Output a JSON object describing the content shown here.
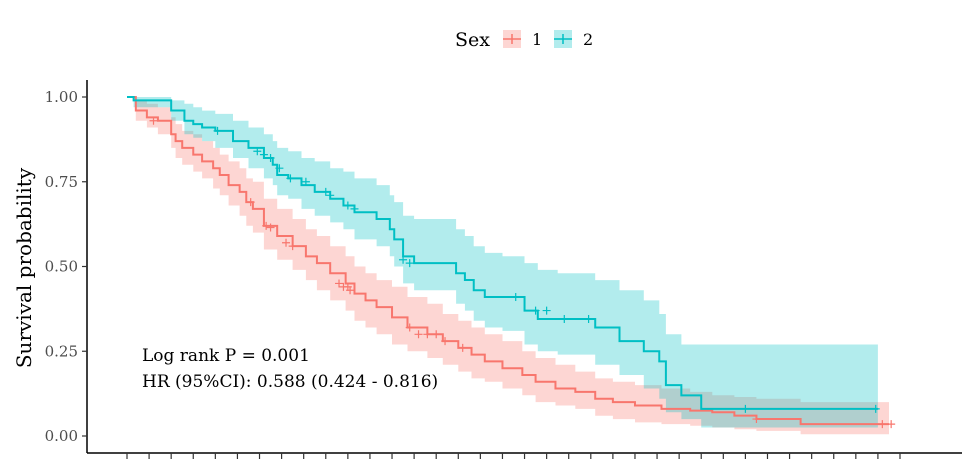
{
  "chart_data": {
    "type": "line",
    "subtype": "kaplan-meier",
    "title": "",
    "xlabel": "",
    "ylabel": "Survival probability",
    "ylim": [
      0,
      1
    ],
    "xlim": [
      0,
      35
    ],
    "y_ticks": [
      0.0,
      0.25,
      0.5,
      0.75,
      1.0
    ],
    "y_tick_labels": [
      "0.00",
      "0.25",
      "0.50",
      "0.75",
      "1.00"
    ],
    "x_ticks": [
      0,
      1,
      2,
      3,
      4,
      5,
      6,
      7,
      8,
      9,
      10,
      11,
      12,
      13,
      14,
      15,
      16,
      17,
      18,
      19,
      20,
      21,
      22,
      23,
      24,
      25,
      26,
      27,
      28,
      29,
      30,
      31,
      32,
      33,
      34,
      35
    ],
    "x_tick_labels_visible": false,
    "legend": {
      "title": "Sex",
      "position": "top",
      "entries": [
        {
          "label": "1",
          "color": "#F8766D"
        },
        {
          "label": "2",
          "color": "#00BFC4"
        }
      ]
    },
    "annotations": {
      "pvalue": "Log rank P = 0.001",
      "hr": "HR (95%CI): 0.588 (0.424 - 0.816)"
    },
    "series": [
      {
        "name": "1",
        "color": "#F8766D",
        "band_color": "#F8766D",
        "times": [
          0,
          0.4,
          0.9,
          1.4,
          2.0,
          2.2,
          2.5,
          3.0,
          3.4,
          3.9,
          4.2,
          4.6,
          5.1,
          5.4,
          5.7,
          6.2,
          6.8,
          7.5,
          8.1,
          8.6,
          9.2,
          9.9,
          10.3,
          10.8,
          11.3,
          12.0,
          12.7,
          13.6,
          14.3,
          15.0,
          15.6,
          16.2,
          17.0,
          17.9,
          18.5,
          19.4,
          20.3,
          21.2,
          22.0,
          23.0,
          24.2,
          25.5,
          26.5,
          27.5,
          28.5,
          30.5,
          34.5
        ],
        "surv": [
          1.0,
          0.96,
          0.94,
          0.93,
          0.89,
          0.87,
          0.85,
          0.83,
          0.81,
          0.79,
          0.77,
          0.74,
          0.72,
          0.69,
          0.67,
          0.62,
          0.59,
          0.56,
          0.53,
          0.51,
          0.48,
          0.45,
          0.42,
          0.4,
          0.38,
          0.35,
          0.32,
          0.3,
          0.28,
          0.26,
          0.24,
          0.22,
          0.2,
          0.18,
          0.16,
          0.14,
          0.13,
          0.11,
          0.1,
          0.09,
          0.08,
          0.075,
          0.07,
          0.06,
          0.05,
          0.035,
          0.035
        ],
        "lower": [
          1.0,
          0.93,
          0.91,
          0.89,
          0.85,
          0.82,
          0.8,
          0.78,
          0.76,
          0.73,
          0.71,
          0.68,
          0.65,
          0.62,
          0.6,
          0.55,
          0.52,
          0.49,
          0.46,
          0.43,
          0.4,
          0.37,
          0.34,
          0.32,
          0.3,
          0.27,
          0.25,
          0.23,
          0.21,
          0.19,
          0.17,
          0.16,
          0.14,
          0.12,
          0.1,
          0.09,
          0.08,
          0.06,
          0.05,
          0.04,
          0.035,
          0.03,
          0.025,
          0.02,
          0.015,
          0.005,
          0.005
        ],
        "upper": [
          1.0,
          0.99,
          0.98,
          0.97,
          0.94,
          0.92,
          0.9,
          0.89,
          0.87,
          0.85,
          0.83,
          0.81,
          0.79,
          0.76,
          0.75,
          0.7,
          0.67,
          0.64,
          0.61,
          0.59,
          0.56,
          0.53,
          0.5,
          0.48,
          0.46,
          0.44,
          0.41,
          0.39,
          0.36,
          0.34,
          0.32,
          0.3,
          0.28,
          0.25,
          0.23,
          0.21,
          0.19,
          0.17,
          0.16,
          0.15,
          0.14,
          0.13,
          0.12,
          0.115,
          0.11,
          0.1,
          0.1
        ],
        "censor_times": [
          1.2,
          5.6,
          6.3,
          6.5,
          7.2,
          7.5,
          9.6,
          9.8,
          10.0,
          10.1,
          12.8,
          13.2,
          13.6,
          14.0,
          14.4,
          15.2,
          28.5,
          34.2,
          34.6
        ],
        "censor_surv": [
          0.93,
          0.69,
          0.62,
          0.615,
          0.57,
          0.56,
          0.45,
          0.44,
          0.44,
          0.43,
          0.32,
          0.3,
          0.3,
          0.3,
          0.28,
          0.26,
          0.05,
          0.035,
          0.035
        ]
      },
      {
        "name": "2",
        "color": "#00BFC4",
        "band_color": "#00BFC4",
        "times": [
          0,
          0.3,
          2.0,
          2.6,
          3.0,
          3.4,
          4.0,
          4.8,
          5.5,
          6.2,
          6.6,
          6.8,
          7.3,
          7.9,
          8.5,
          9.2,
          9.8,
          10.3,
          11.3,
          11.9,
          12.1,
          12.5,
          13.0,
          14.9,
          15.3,
          15.7,
          16.2,
          17.0,
          18.0,
          18.6,
          19.5,
          21.2,
          22.3,
          23.4,
          24.1,
          24.4,
          25.1,
          26.0,
          34.0
        ],
        "surv": [
          1.0,
          0.99,
          0.96,
          0.93,
          0.92,
          0.91,
          0.9,
          0.87,
          0.85,
          0.82,
          0.8,
          0.77,
          0.76,
          0.74,
          0.72,
          0.7,
          0.68,
          0.66,
          0.64,
          0.61,
          0.58,
          0.53,
          0.51,
          0.48,
          0.46,
          0.43,
          0.41,
          0.41,
          0.37,
          0.345,
          0.345,
          0.32,
          0.28,
          0.25,
          0.22,
          0.15,
          0.12,
          0.08,
          0.08
        ],
        "lower": [
          1.0,
          0.97,
          0.93,
          0.89,
          0.88,
          0.87,
          0.85,
          0.82,
          0.79,
          0.76,
          0.74,
          0.71,
          0.7,
          0.67,
          0.65,
          0.63,
          0.61,
          0.58,
          0.56,
          0.53,
          0.5,
          0.45,
          0.43,
          0.39,
          0.37,
          0.34,
          0.32,
          0.31,
          0.27,
          0.25,
          0.24,
          0.21,
          0.18,
          0.14,
          0.11,
          0.07,
          0.05,
          0.025,
          0.025
        ],
        "upper": [
          1.0,
          1.0,
          0.99,
          0.98,
          0.97,
          0.96,
          0.95,
          0.93,
          0.91,
          0.89,
          0.87,
          0.85,
          0.84,
          0.82,
          0.81,
          0.79,
          0.78,
          0.76,
          0.74,
          0.71,
          0.69,
          0.65,
          0.64,
          0.61,
          0.59,
          0.56,
          0.54,
          0.53,
          0.51,
          0.49,
          0.48,
          0.46,
          0.43,
          0.4,
          0.36,
          0.3,
          0.27,
          0.27,
          0.27
        ],
        "censor_times": [
          4.1,
          5.9,
          6.2,
          6.5,
          6.9,
          7.4,
          8.1,
          9.0,
          9.2,
          10.0,
          10.3,
          12.5,
          12.8,
          17.6,
          18.5,
          19.0,
          19.8,
          20.9,
          28.0,
          33.9
        ],
        "censor_surv": [
          0.9,
          0.84,
          0.83,
          0.82,
          0.79,
          0.76,
          0.75,
          0.72,
          0.71,
          0.68,
          0.67,
          0.52,
          0.51,
          0.41,
          0.37,
          0.37,
          0.345,
          0.345,
          0.08,
          0.08
        ]
      }
    ]
  }
}
